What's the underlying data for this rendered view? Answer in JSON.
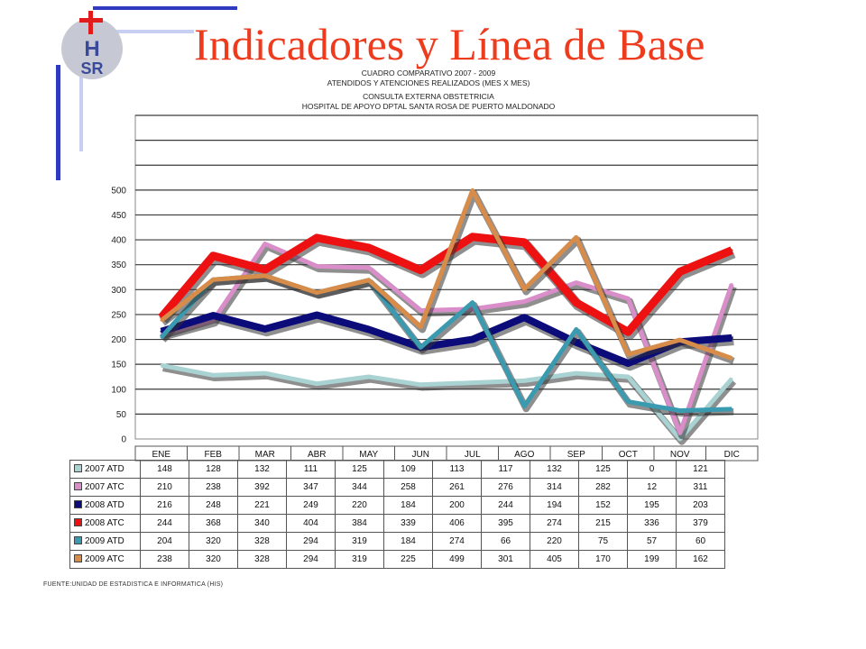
{
  "title": "Indicadores y Línea de Base",
  "logo": {
    "text": "HSR",
    "icon": "hospital-cross-logo"
  },
  "subtitles": [
    "CUADRO COMPARATIVO 2007 - 2009",
    "ATENDIDOS Y ATENCIONES REALIZADOS (MES X MES)",
    "CONSULTA EXTERNA OBSTETRICIA",
    "HOSPITAL DE APOYO DPTAL SANTA ROSA DE PUERTO MALDONADO"
  ],
  "source": "FUENTE:UNIDAD DE ESTADISTICA E INFORMATICA (HIS)",
  "chart_data": {
    "type": "line",
    "categories": [
      "ENE",
      "FEB",
      "MAR",
      "ABR",
      "MAY",
      "JUN",
      "JUL",
      "AGO",
      "SEP",
      "OCT",
      "NOV",
      "DIC"
    ],
    "ylim": [
      0,
      650
    ],
    "yticks": [
      0,
      50,
      100,
      150,
      200,
      250,
      300,
      350,
      400,
      450,
      500
    ],
    "grid": true,
    "legend": "table-below",
    "series": [
      {
        "name": "2007 ATD",
        "color": "#a9d3d3",
        "values": [
          148,
          128,
          132,
          111,
          125,
          109,
          113,
          117,
          132,
          125,
          0,
          121
        ]
      },
      {
        "name": "2007 ATC",
        "color": "#d98ec9",
        "values": [
          210,
          238,
          392,
          347,
          344,
          258,
          261,
          276,
          314,
          282,
          12,
          311
        ]
      },
      {
        "name": "2008 ATD",
        "color": "#0b0b7a",
        "values": [
          216,
          248,
          221,
          249,
          220,
          184,
          200,
          244,
          194,
          152,
          195,
          203
        ]
      },
      {
        "name": "2008 ATC",
        "color": "#ee1111",
        "values": [
          244,
          368,
          340,
          404,
          384,
          339,
          406,
          395,
          274,
          215,
          336,
          379
        ]
      },
      {
        "name": "2009 ATD",
        "color": "#3a9ab0",
        "values": [
          204,
          320,
          328,
          294,
          319,
          184,
          274,
          66,
          220,
          75,
          57,
          60
        ]
      },
      {
        "name": "2009 ATC",
        "color": "#d88c4a",
        "values": [
          238,
          320,
          328,
          294,
          319,
          225,
          499,
          301,
          405,
          170,
          199,
          162
        ]
      }
    ]
  }
}
